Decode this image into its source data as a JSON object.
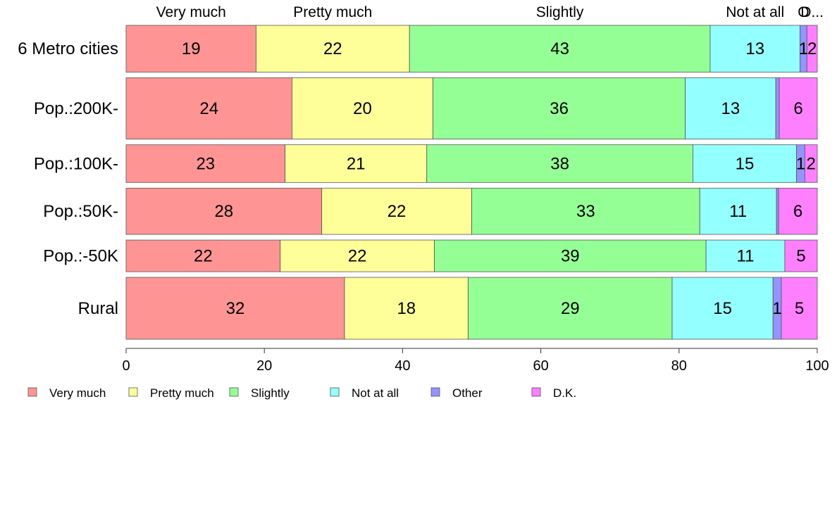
{
  "chart_data": {
    "type": "bar",
    "orientation": "horizontal",
    "stacked": true,
    "categories": [
      "6 Metro cities",
      "Pop.:200K-",
      "Pop.:100K-",
      "Pop.:50K-",
      "Pop.:-50K",
      "Rural"
    ],
    "widths": [
      0.93,
      1.22,
      0.75,
      0.92,
      0.63,
      1.23
    ],
    "series": [
      {
        "name": "Very much",
        "color": "#FF9494",
        "values": [
          18.8,
          24.0,
          23.0,
          28.3,
          22.3,
          31.6
        ],
        "labels": [
          "19",
          "24",
          "23",
          "28",
          "22",
          "32"
        ]
      },
      {
        "name": "Pretty much",
        "color": "#FFFF99",
        "values": [
          22.2,
          20.4,
          20.5,
          21.7,
          22.3,
          17.9
        ],
        "labels": [
          "22",
          "20",
          "21",
          "22",
          "22",
          "18"
        ]
      },
      {
        "name": "Slightly",
        "color": "#94FF94",
        "values": [
          43.5,
          36.5,
          38.5,
          33.0,
          39.3,
          29.5
        ],
        "labels": [
          "43",
          "36",
          "38",
          "33",
          "39",
          "29"
        ]
      },
      {
        "name": "Not at all",
        "color": "#94FFFF",
        "values": [
          13.0,
          13.1,
          15.0,
          11.1,
          11.4,
          14.6
        ],
        "labels": [
          "13",
          "13",
          "15",
          "11",
          "11",
          "15"
        ]
      },
      {
        "name": "Other",
        "color": "#9494FF",
        "values": [
          1.0,
          0.5,
          1.2,
          0.3,
          0.0,
          1.2
        ],
        "labels": [
          "1",
          "",
          "1",
          "",
          "",
          "1"
        ]
      },
      {
        "name": "D.K.",
        "color": "#FF80FF",
        "values": [
          1.5,
          5.5,
          1.8,
          5.6,
          4.7,
          5.2
        ],
        "labels": [
          "2",
          "6",
          "2",
          "6",
          "5",
          "5"
        ]
      }
    ],
    "top_labels": [
      "Very much",
      "Pretty much",
      "Slightly",
      "Not at all",
      "O",
      "D..."
    ],
    "xlim": [
      0,
      100
    ],
    "xticks": [
      0,
      20,
      40,
      60,
      80,
      100
    ],
    "grid": false,
    "legend_position": "bottom"
  }
}
